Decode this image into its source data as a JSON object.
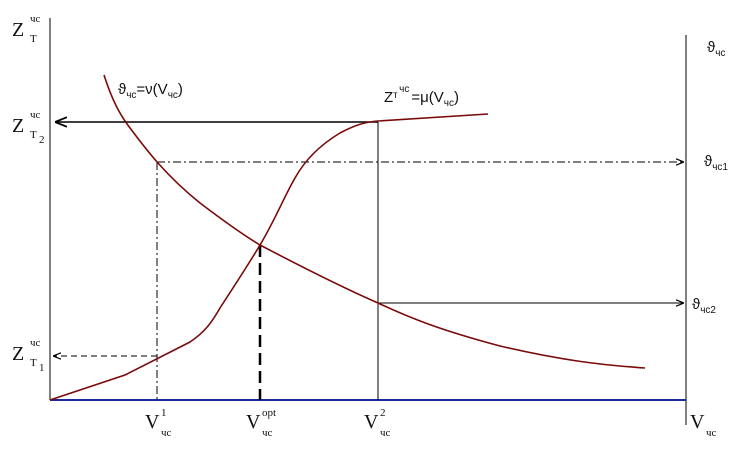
{
  "y_axis": {
    "label": {
      "main": "Z",
      "sub": "T",
      "sup": "чс"
    },
    "level_2": {
      "main": "Z",
      "sub": "T",
      "index": "2",
      "sup": "чс"
    },
    "level_1": {
      "main": "Z",
      "sub": "T",
      "index": "1",
      "sup": "чс"
    }
  },
  "right_axis": {
    "label": [
      "ϑ",
      "чс"
    ],
    "level_1": [
      "ϑ",
      "чс1"
    ],
    "level_2": [
      "ϑ",
      "чс2"
    ]
  },
  "curves": {
    "speed_curve": [
      "ϑ",
      "чс",
      "=ν(V",
      "чс",
      ")"
    ],
    "cost_curve": [
      "Z",
      "т",
      "чс",
      "=μ(V",
      "чс",
      ")"
    ]
  },
  "x_axis": {
    "v1": {
      "main": "V",
      "sub": "чс",
      "sup": "1"
    },
    "v_opt": {
      "main": "V",
      "sub": "чс",
      "sup": "opt"
    },
    "v2": {
      "main": "V",
      "sub": "чс",
      "sup": "2"
    },
    "label": {
      "main": "V",
      "sub": "чс"
    }
  }
}
